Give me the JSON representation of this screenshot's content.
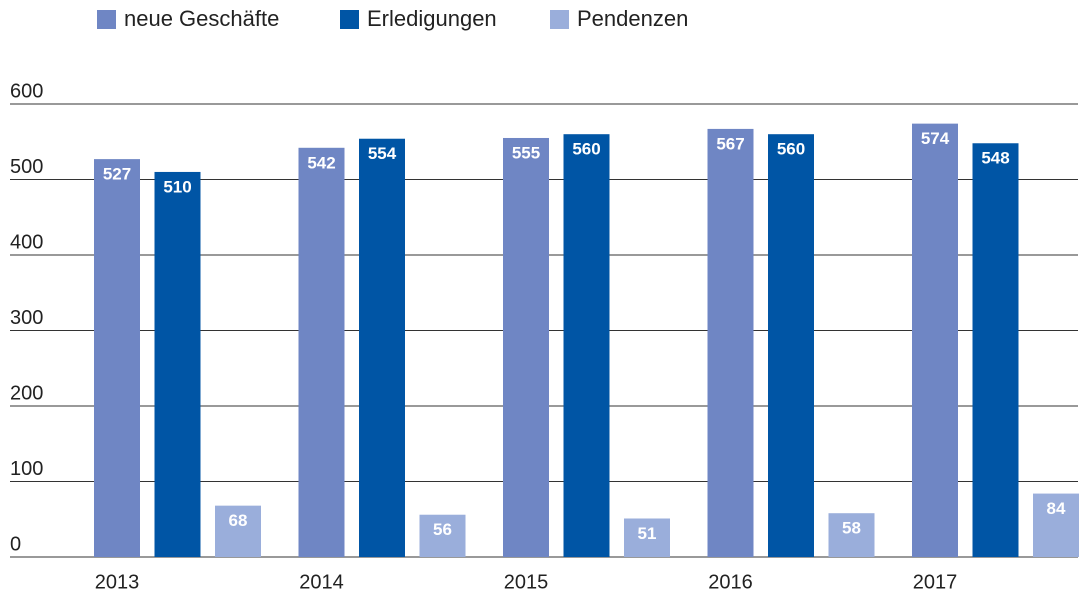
{
  "chart_data": {
    "type": "bar",
    "categories": [
      "2013",
      "2014",
      "2015",
      "2016",
      "2017"
    ],
    "series": [
      {
        "name": "neue Geschäfte",
        "color": "#6f86c4",
        "values": [
          527,
          542,
          555,
          567,
          574
        ]
      },
      {
        "name": "Erledigungen",
        "color": "#0055a5",
        "values": [
          510,
          554,
          560,
          560,
          548
        ]
      },
      {
        "name": "Pendenzen",
        "color": "#9aaedb",
        "values": [
          68,
          56,
          51,
          58,
          84
        ]
      }
    ],
    "ylim": [
      0,
      600
    ],
    "yticks": [
      0,
      100,
      200,
      300,
      400,
      500,
      600
    ],
    "grid": true,
    "legend": "top"
  }
}
